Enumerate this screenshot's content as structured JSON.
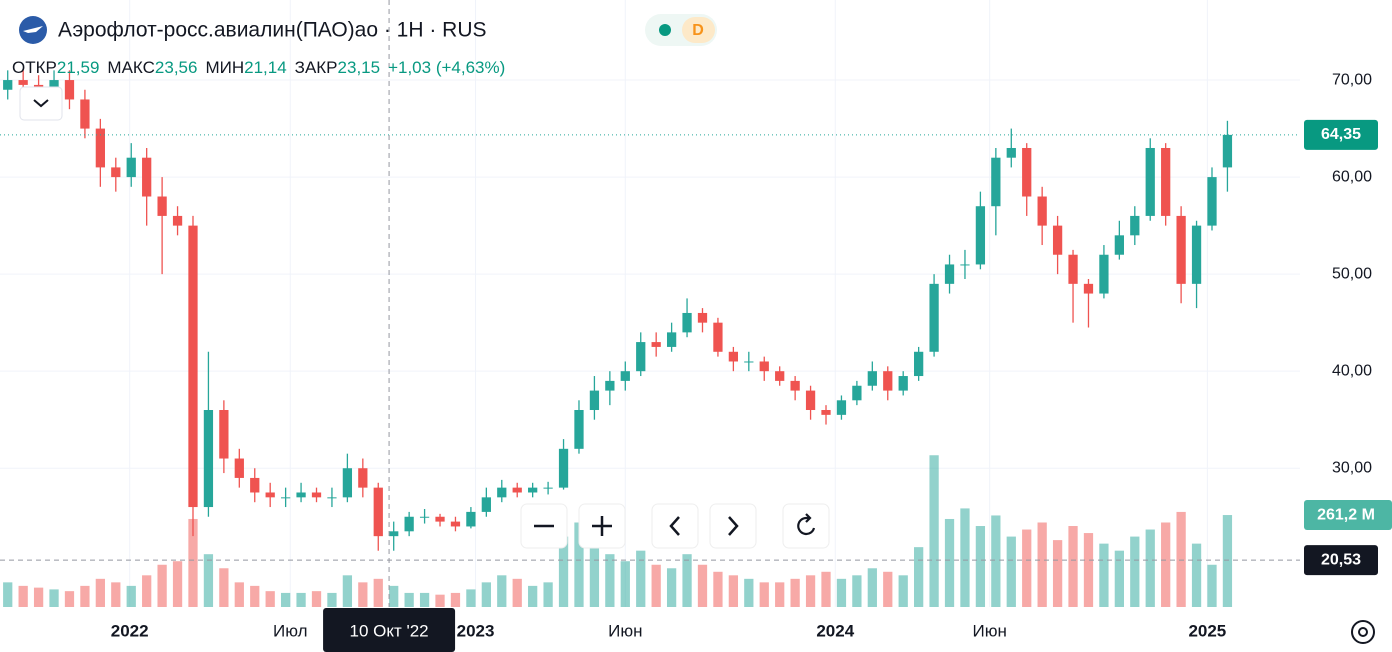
{
  "chart_data": {
    "type": "candlestick",
    "title": "Аэрофлот-росс.авиалин(ПАО)ао · 1Н · RUS",
    "badge": "D",
    "legend": [
      {
        "label": "ОТКР",
        "value": "21,59"
      },
      {
        "label": "МАКС",
        "value": "23,56"
      },
      {
        "label": "МИН",
        "value": "21,14"
      },
      {
        "label": "ЗАКР",
        "value": "23,15"
      }
    ],
    "change": "+1,03 (+4,63%)",
    "up_color": "#26a69a",
    "down_color": "#ef5350",
    "grid": true,
    "x": [
      0,
      1,
      2,
      3,
      4,
      5,
      6,
      7,
      8,
      9,
      10,
      11,
      12,
      13,
      14,
      15,
      16,
      17,
      18,
      19,
      20,
      21,
      22,
      23,
      24,
      25,
      26,
      27,
      28,
      29,
      30,
      31,
      32,
      33,
      34,
      35,
      36,
      37,
      38,
      39,
      40,
      41,
      42,
      43,
      44,
      45,
      46,
      47,
      48,
      49,
      50,
      51,
      52,
      53,
      54,
      55,
      56,
      57,
      58,
      59,
      60,
      61,
      62,
      63,
      64,
      65,
      66,
      67,
      68,
      69,
      70,
      71,
      72,
      73,
      74,
      75,
      76,
      77,
      78,
      79
    ],
    "open": [
      69,
      70,
      69.5,
      69,
      70,
      68,
      65,
      61,
      60,
      62,
      58,
      56,
      55,
      26,
      36,
      31,
      29,
      27.5,
      27,
      27,
      27.5,
      27,
      27,
      30,
      28,
      23,
      23.5,
      25,
      25,
      24.5,
      24,
      25.5,
      27,
      28,
      27.5,
      28,
      28,
      32,
      36,
      38,
      39,
      40,
      43,
      42.5,
      44,
      46,
      45,
      42,
      41,
      41,
      40,
      39,
      38,
      36,
      35.5,
      37,
      38.5,
      40,
      38,
      39.5,
      42,
      49,
      51,
      51,
      57,
      62,
      63,
      58,
      55,
      52,
      49,
      48,
      52,
      54,
      56,
      63,
      56,
      49,
      55,
      61
    ],
    "high": [
      71,
      71,
      70.5,
      71,
      71,
      69,
      66,
      62,
      63.5,
      63,
      60,
      57,
      56,
      42,
      37,
      32,
      30,
      28.5,
      28,
      28.5,
      28,
      28,
      31.5,
      31,
      28.5,
      24.5,
      25.5,
      25.8,
      25.3,
      25,
      26,
      28,
      28.8,
      28.5,
      28.5,
      28.6,
      33,
      37,
      39.5,
      40,
      41,
      44,
      44,
      45,
      47.5,
      46.5,
      45.5,
      42.5,
      42,
      41.5,
      40.5,
      39.5,
      38.5,
      36.5,
      37.5,
      39,
      41,
      40.5,
      40,
      42.5,
      50,
      52,
      52.5,
      58.5,
      63,
      65,
      63.5,
      59,
      56,
      52.5,
      49.5,
      53,
      55.5,
      57,
      64,
      63.5,
      57,
      55.5,
      61,
      65.8
    ],
    "low": [
      68,
      68.5,
      68,
      68,
      67,
      64,
      59,
      58.5,
      59,
      55,
      50,
      54,
      23,
      25,
      29.5,
      28,
      26.5,
      26,
      26,
      26.5,
      26.5,
      26,
      26.5,
      27,
      21.5,
      21.5,
      23,
      24.3,
      24,
      23.5,
      23.8,
      25,
      26.5,
      27,
      27,
      27.3,
      27.8,
      31.5,
      35,
      36.5,
      38,
      39.5,
      41.5,
      42,
      43.5,
      44,
      41.5,
      40,
      40,
      39,
      38.5,
      37,
      35,
      34.5,
      35,
      36.5,
      38,
      37,
      37.5,
      39,
      41.5,
      48,
      49.5,
      50.5,
      54,
      61,
      56,
      53,
      50,
      45,
      44.5,
      47.5,
      51.5,
      53,
      55.5,
      55,
      47,
      46.5,
      54.5,
      58.5
    ],
    "close": [
      70,
      69.5,
      69,
      70,
      68,
      65,
      61,
      60,
      62,
      58,
      56,
      55,
      26,
      36,
      31,
      29,
      27.5,
      27,
      27,
      27.5,
      27,
      27,
      30,
      28,
      23,
      23.5,
      25,
      25,
      24.5,
      24,
      25.5,
      27,
      28,
      27.5,
      28,
      28,
      32,
      36,
      38,
      39,
      40,
      43,
      42.5,
      44,
      46,
      45,
      42,
      41,
      41,
      40,
      39,
      38,
      36,
      35.5,
      37,
      38.5,
      40,
      38,
      39.5,
      42,
      49,
      51,
      51,
      57,
      62,
      63,
      58,
      55,
      52,
      49,
      48,
      52,
      54,
      56,
      63,
      56,
      49,
      55,
      60,
      64.35
    ],
    "volume": [
      70,
      60,
      55,
      50,
      45,
      60,
      80,
      70,
      60,
      90,
      120,
      130,
      250,
      150,
      110,
      70,
      60,
      45,
      40,
      40,
      45,
      40,
      90,
      70,
      80,
      60,
      40,
      40,
      35,
      40,
      50,
      70,
      90,
      80,
      60,
      70,
      200,
      240,
      190,
      150,
      130,
      160,
      120,
      110,
      150,
      120,
      100,
      90,
      80,
      70,
      70,
      80,
      90,
      100,
      80,
      90,
      110,
      100,
      90,
      170,
      431,
      250,
      280,
      230,
      260,
      200,
      220,
      240,
      190,
      230,
      210,
      180,
      160,
      200,
      220,
      240,
      270,
      180,
      120,
      261.2
    ],
    "xlim": [
      -0.5,
      83.7
    ],
    "xticks": [
      {
        "value": 7.9,
        "label": "2022"
      },
      {
        "value": 18.3,
        "label": "Июл"
      },
      {
        "value": 30.3,
        "label": "2023"
      },
      {
        "value": 40,
        "label": "Июн"
      },
      {
        "value": 53.6,
        "label": "2024"
      },
      {
        "value": 63.6,
        "label": "Июн"
      },
      {
        "value": 77.7,
        "label": "2025"
      }
    ],
    "ylim": [
      15.7,
      78.25
    ],
    "yticks": [
      {
        "value": 30,
        "label": "30,00"
      },
      {
        "value": 40,
        "label": "40,00"
      },
      {
        "value": 50,
        "label": "50,00"
      },
      {
        "value": 60,
        "label": "60,00"
      },
      {
        "value": 70,
        "label": "70,00"
      }
    ],
    "y2lim": [
      0,
      1724
    ],
    "last_price": {
      "value": 64.35,
      "label": "64,35"
    },
    "last_volume": {
      "value": 261.2,
      "label": "261,2 M"
    },
    "crosshair": {
      "x": 24.7,
      "x_label": "10 Окт '22",
      "price": {
        "value": 20.53,
        "label": "20,53"
      }
    }
  }
}
